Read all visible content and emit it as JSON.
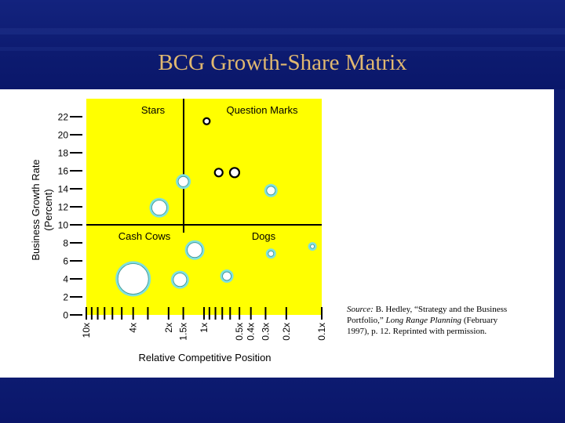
{
  "slide": {
    "title": "BCG Growth-Share Matrix",
    "source": {
      "label": "Source:",
      "text1": "B. Hedley, “Strategy and the Business Portfolio,”",
      "journal": "Long Range Planning",
      "text2": "(February 1997), p. 12. Reprinted with permission."
    }
  },
  "colors": {
    "background": "#0d1b70",
    "title": "#e0b870",
    "plot_area": "#ffff00",
    "bubble_fill": "#ffffff",
    "bubble_ring": "#7fe0e0",
    "dark_bubble_ring": "#000000"
  },
  "chart_data": {
    "type": "scatter",
    "ylabel_lines": [
      "Business Growth Rate",
      "(Percent)"
    ],
    "xlabel": "Relative Competitive Position",
    "ylim": [
      0,
      24
    ],
    "y_ticks": [
      0,
      2,
      4,
      6,
      8,
      10,
      12,
      14,
      16,
      18,
      20,
      22
    ],
    "y_tick_labels": [
      "0",
      "2",
      "4",
      "6",
      "8",
      "10",
      "12",
      "14",
      "16",
      "18",
      "20",
      "22"
    ],
    "x_scale": "log-reversed",
    "xlim": [
      10,
      0.1
    ],
    "x_tick_labels": [
      {
        "label": "10x",
        "value": 10
      },
      {
        "label": "4x",
        "value": 4
      },
      {
        "label": "2x",
        "value": 2
      },
      {
        "label": "1.5x",
        "value": 1.5
      },
      {
        "label": "1x",
        "value": 1
      },
      {
        "label": "0.5x",
        "value": 0.5
      },
      {
        "label": "0.4x",
        "value": 0.4
      },
      {
        "label": "0.3x",
        "value": 0.3
      },
      {
        "label": "0.2x",
        "value": 0.2
      },
      {
        "label": "0.1x",
        "value": 0.1
      }
    ],
    "x_minor_ticks": [
      9,
      8,
      7,
      6,
      5,
      3,
      0.9,
      0.8,
      0.7,
      0.6
    ],
    "dividers": {
      "x": 1,
      "y": 10
    },
    "quadrants": [
      {
        "label": "Stars",
        "anchor": "top-left"
      },
      {
        "label": "Question Marks",
        "anchor": "top-right"
      },
      {
        "label": "Cash Cows",
        "anchor": "bottom-left"
      },
      {
        "label": "Dogs",
        "anchor": "bottom-right"
      }
    ],
    "points": [
      {
        "x": 0.95,
        "y": 21.5,
        "size": 4,
        "style": "dark"
      },
      {
        "x": 0.75,
        "y": 15.8,
        "size": 5,
        "style": "dark"
      },
      {
        "x": 0.55,
        "y": 15.8,
        "size": 6,
        "style": "dark"
      },
      {
        "x": 1.5,
        "y": 14.8,
        "size": 8,
        "style": "ring"
      },
      {
        "x": 0.27,
        "y": 13.8,
        "size": 7,
        "style": "ring"
      },
      {
        "x": 2.4,
        "y": 11.9,
        "size": 11,
        "style": "ring"
      },
      {
        "x": 1.2,
        "y": 7.2,
        "size": 11,
        "style": "ring"
      },
      {
        "x": 0.27,
        "y": 6.8,
        "size": 5,
        "style": "ring"
      },
      {
        "x": 0.12,
        "y": 7.6,
        "size": 4,
        "style": "ring"
      },
      {
        "x": 0.64,
        "y": 4.3,
        "size": 7,
        "style": "ring"
      },
      {
        "x": 4.0,
        "y": 4.0,
        "size": 21,
        "style": "ring"
      },
      {
        "x": 1.6,
        "y": 3.9,
        "size": 10,
        "style": "ring"
      }
    ]
  }
}
